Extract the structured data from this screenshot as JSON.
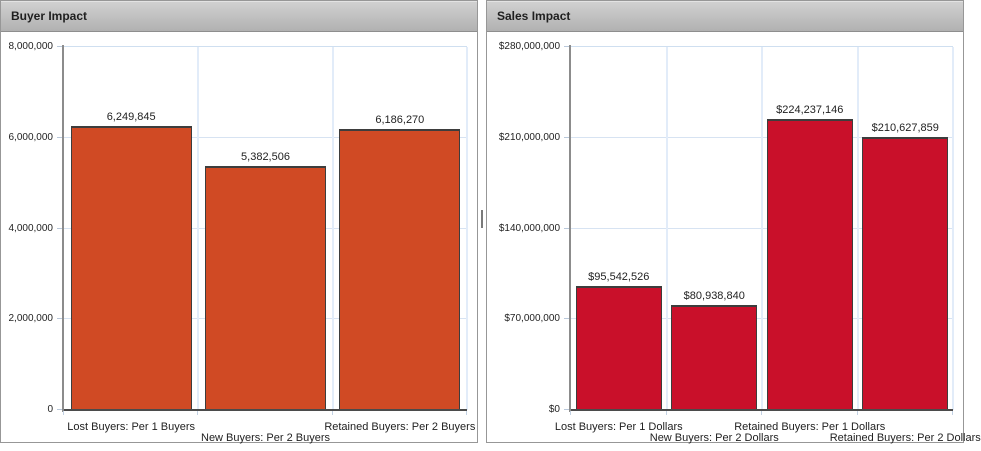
{
  "panels": [
    {
      "title": "Buyer Impact"
    },
    {
      "title": "Sales Impact"
    }
  ],
  "colors": {
    "buyer_bar": "#d04a24",
    "sales_bar": "#c9102a",
    "gridline": "#d7e3f2",
    "axis_line": "#8c8c8c",
    "header_text": "#1f1f1f"
  },
  "chart_data": [
    {
      "type": "bar",
      "title": "Buyer Impact",
      "categories": [
        "Lost Buyers: Per 1 Buyers",
        "New Buyers: Per 2 Buyers",
        "Retained Buyers: Per 2 Buyers"
      ],
      "values": [
        6249845,
        5382506,
        6186270
      ],
      "value_labels": [
        "6,249,845",
        "5,382,506",
        "6,186,270"
      ],
      "xlabel": "",
      "ylabel": "",
      "ylim": [
        0,
        8000000
      ],
      "y_ticks": [
        0,
        2000000,
        4000000,
        6000000,
        8000000
      ],
      "y_tick_labels": [
        "0",
        "2,000,000",
        "4,000,000",
        "6,000,000",
        "8,000,000"
      ],
      "bar_color": "#d04a24",
      "grid": true,
      "legend": false
    },
    {
      "type": "bar",
      "title": "Sales Impact",
      "categories": [
        "Lost Buyers: Per 1 Dollars",
        "New Buyers: Per 2 Dollars",
        "Retained Buyers: Per 1 Dollars",
        "Retained Buyers: Per 2 Dollars"
      ],
      "values": [
        95542526,
        80938840,
        224237146,
        210627859
      ],
      "value_labels": [
        "$95,542,526",
        "$80,938,840",
        "$224,237,146",
        "$210,627,859"
      ],
      "xlabel": "",
      "ylabel": "",
      "ylim": [
        0,
        280000000
      ],
      "y_ticks": [
        0,
        70000000,
        140000000,
        210000000,
        280000000
      ],
      "y_tick_labels": [
        "$0",
        "$70,000,000",
        "$140,000,000",
        "$210,000,000",
        "$280,000,000"
      ],
      "bar_color": "#c9102a",
      "grid": true,
      "legend": false
    }
  ]
}
